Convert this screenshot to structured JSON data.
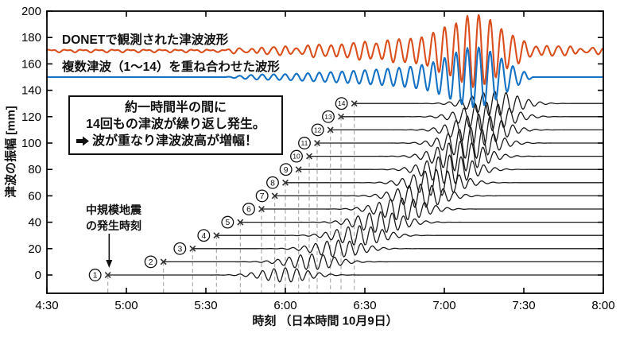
{
  "chart_data": {
    "type": "line",
    "title": "",
    "xlabel": "時刻 （日本時間 10月9日）",
    "ylabel": "津波の振幅 [mm]",
    "x_axis": {
      "start_label": "4:30",
      "end_label": "8:00",
      "tick_labels": [
        "4:30",
        "5:00",
        "5:30",
        "6:00",
        "6:30",
        "7:00",
        "7:30",
        "8:00"
      ],
      "tick_minutes": [
        0,
        30,
        60,
        90,
        120,
        150,
        180,
        210
      ],
      "total_minutes": 210
    },
    "y_axis": {
      "min": -14,
      "max": 200,
      "tick_values": [
        0,
        20,
        40,
        60,
        80,
        100,
        120,
        140,
        160,
        180,
        200
      ]
    },
    "grid": "off",
    "legend_position": "inline-labels",
    "carrier_period_min": 4.3,
    "packet_sigma_min": 8.5,
    "observed_series": {
      "name": "DONETで観測された津波波形",
      "color": "#da4f1e",
      "baseline_mm": 170,
      "peak_amplitude_mm": 26,
      "noise_amplitude_mm": 0.8,
      "envelopes": [
        {
          "center_min": 163,
          "sigma_min": 9.5,
          "amp_mm": 23.5
        },
        {
          "center_min": 145,
          "sigma_min": 13,
          "amp_mm": 8.2
        },
        {
          "center_min": 120,
          "sigma_min": 13,
          "amp_mm": 4.7
        },
        {
          "center_min": 97,
          "sigma_min": 11,
          "amp_mm": 2.4
        },
        {
          "center_min": 79,
          "sigma_min": 7,
          "amp_mm": 1.5
        },
        {
          "center_min": 193,
          "sigma_min": 13,
          "amp_mm": 3.0
        }
      ]
    },
    "superposed_series": {
      "name": "複数津波（1〜14）を重ね合わせた波形",
      "color": "#1572c4",
      "baseline_mm": 150,
      "peak_amplitude_mm": 22,
      "flat_before_min": 66,
      "flat_after_min": 184,
      "envelopes": [
        {
          "center_min": 163,
          "sigma_min": 9.5,
          "amp_mm": 20
        },
        {
          "center_min": 145,
          "sigma_min": 13,
          "amp_mm": 7
        },
        {
          "center_min": 120,
          "sigma_min": 13,
          "amp_mm": 4
        },
        {
          "center_min": 97,
          "sigma_min": 11,
          "amp_mm": 2
        },
        {
          "center_min": 79,
          "sigma_min": 7,
          "amp_mm": 1.3
        }
      ]
    },
    "tsunami_events": [
      {
        "num": 1,
        "circled_label": "①",
        "baseline_mm": 0,
        "start_time": "4:53",
        "start_min": 23,
        "packet_center_min": 90,
        "amplitude_mm": 5.5
      },
      {
        "num": 2,
        "circled_label": "②",
        "baseline_mm": 10,
        "start_time": "5:14",
        "start_min": 44,
        "packet_center_min": 100,
        "amplitude_mm": 6
      },
      {
        "num": 3,
        "circled_label": "③",
        "baseline_mm": 20,
        "start_time": "5:25",
        "start_min": 55,
        "packet_center_min": 110,
        "amplitude_mm": 6.5
      },
      {
        "num": 4,
        "circled_label": "④",
        "baseline_mm": 30,
        "start_time": "5:34",
        "start_min": 64,
        "packet_center_min": 118,
        "amplitude_mm": 7.5
      },
      {
        "num": 5,
        "circled_label": "⑤",
        "baseline_mm": 40,
        "start_time": "5:43",
        "start_min": 73,
        "packet_center_min": 126,
        "amplitude_mm": 8
      },
      {
        "num": 6,
        "circled_label": "⑥",
        "baseline_mm": 50,
        "start_time": "5:51",
        "start_min": 81,
        "packet_center_min": 134,
        "amplitude_mm": 8.5
      },
      {
        "num": 7,
        "circled_label": "⑦",
        "baseline_mm": 60,
        "start_time": "5:56",
        "start_min": 86,
        "packet_center_min": 141,
        "amplitude_mm": 9
      },
      {
        "num": 8,
        "circled_label": "⑧",
        "baseline_mm": 70,
        "start_time": "6:00",
        "start_min": 90,
        "packet_center_min": 147,
        "amplitude_mm": 10
      },
      {
        "num": 9,
        "circled_label": "⑨",
        "baseline_mm": 80,
        "start_time": "6:05",
        "start_min": 95,
        "packet_center_min": 152,
        "amplitude_mm": 11
      },
      {
        "num": 10,
        "circled_label": "⑩",
        "baseline_mm": 90,
        "start_time": "6:09",
        "start_min": 99,
        "packet_center_min": 156,
        "amplitude_mm": 11.5
      },
      {
        "num": 11,
        "circled_label": "⑪",
        "baseline_mm": 100,
        "start_time": "6:12",
        "start_min": 102,
        "packet_center_min": 160,
        "amplitude_mm": 12
      },
      {
        "num": 12,
        "circled_label": "⑫",
        "baseline_mm": 110,
        "start_time": "6:17",
        "start_min": 107,
        "packet_center_min": 163,
        "amplitude_mm": 12
      },
      {
        "num": 13,
        "circled_label": "⑬",
        "baseline_mm": 120,
        "start_time": "6:21",
        "start_min": 111,
        "packet_center_min": 166,
        "amplitude_mm": 11
      },
      {
        "num": 14,
        "circled_label": "⑭",
        "baseline_mm": 130,
        "start_time": "6:26",
        "start_min": 116,
        "packet_center_min": 169,
        "amplitude_mm": 9.5
      }
    ]
  },
  "annotations": {
    "box": {
      "line1": "約一時間半の間に",
      "line2": "14回もの津波が繰り返し発生。",
      "line3_arrow_icon": "right-arrow",
      "line3": "波が重なり津波波高が増幅！"
    },
    "quake": {
      "line1": "中規模地震",
      "line2": "の発生時刻",
      "points_to_time": "4:53"
    }
  },
  "style_colors": {
    "trace_black": "#1a1a1a",
    "axis": "#000000",
    "dashed_guide": "#adadad"
  }
}
